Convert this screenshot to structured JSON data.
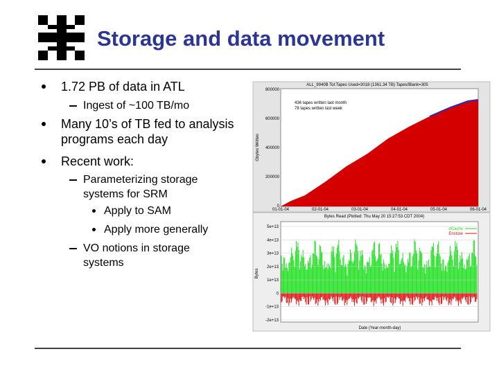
{
  "header": {
    "title": "Storage and data movement"
  },
  "bullets": [
    {
      "text": "1.72 PB of data in ATL",
      "sub": [
        {
          "text": "Ingest of ~100 TB/mo"
        }
      ]
    },
    {
      "text": "Many 10’s of TB fed to analysis programs each day"
    },
    {
      "text": "Recent work:",
      "sub": [
        {
          "text": "Parameterizing storage systems for SRM",
          "sub": [
            {
              "text": "Apply to SAM"
            },
            {
              "text": "Apply more generally"
            }
          ]
        },
        {
          "text": "VO notions in storage systems"
        }
      ]
    }
  ],
  "figure1": {
    "title": "ALL_9940B Tot:Tapes Used=3018 (1361.34 TB) Tapes/Blank=305",
    "ylabel": "Gbytes Written",
    "yticks": [
      "800000",
      "600000",
      "400000",
      "200000",
      "0"
    ],
    "xticks": [
      "01-01-04",
      "02-01-04",
      "03-01-04",
      "04-01-04",
      "05-01-04",
      "06-01-04"
    ],
    "notes": [
      "436 tapes written last month",
      "78 tapes written last week"
    ]
  },
  "figure2": {
    "title": "Bytes Read (Plotted: Thu May 20 15:27:53 CDT 2004)",
    "ylabel": "Bytes",
    "xlabel": "Date (Year-month-day)",
    "yticks": [
      "5e+13",
      "4e+13",
      "3e+13",
      "2e+13",
      "1e+13",
      "0",
      "-1e+13",
      "-2e+13"
    ],
    "legend": [
      "dCache",
      "Enstore"
    ]
  }
}
